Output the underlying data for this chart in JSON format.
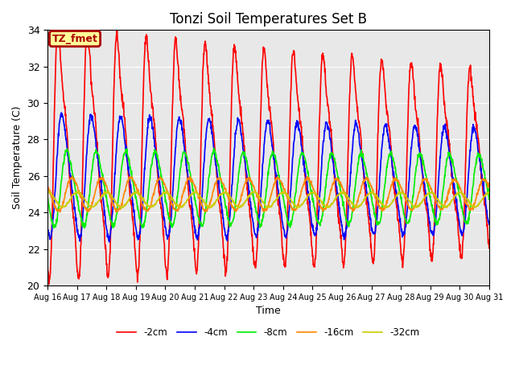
{
  "title": "Tonzi Soil Temperatures Set B",
  "xlabel": "Time",
  "ylabel": "Soil Temperature (C)",
  "ylim": [
    20,
    34
  ],
  "xlim_hours": [
    0,
    360
  ],
  "annotation_label": "TZ_fmet",
  "annotation_bg": "#FFFF99",
  "annotation_border": "#AA0000",
  "bg_color": "#E8E8E8",
  "series": [
    {
      "label": "-2cm",
      "color": "#FF0000"
    },
    {
      "label": "-4cm",
      "color": "#0000FF"
    },
    {
      "label": "-8cm",
      "color": "#00EE00"
    },
    {
      "label": "-16cm",
      "color": "#FF8800"
    },
    {
      "label": "-32cm",
      "color": "#CCCC00"
    }
  ],
  "x_tick_labels": [
    "Aug 16",
    "Aug 17",
    "Aug 18",
    "Aug 19",
    "Aug 20",
    "Aug 21",
    "Aug 22",
    "Aug 23",
    "Aug 24",
    "Aug 25",
    "Aug 26",
    "Aug 27",
    "Aug 28",
    "Aug 29",
    "Aug 30",
    "Aug 31"
  ],
  "title_fontsize": 12,
  "tick_fontsize": 7,
  "ylabel_fontsize": 9,
  "xlabel_fontsize": 9
}
